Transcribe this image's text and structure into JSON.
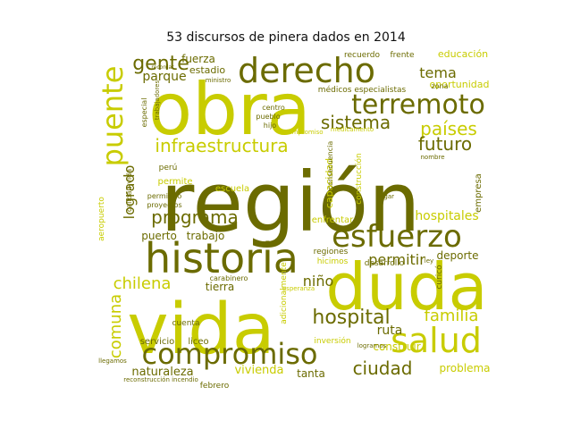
{
  "title": "53 discursos de pinera dados en 2014",
  "colors": {
    "dark": "#6b6b00",
    "light": "#c8cc00",
    "mid": "#9a9a00"
  },
  "words": [
    {
      "text": "región",
      "tone": "dark"
    },
    {
      "text": "obra",
      "tone": "light"
    },
    {
      "text": "vida",
      "tone": "light"
    },
    {
      "text": "duda",
      "tone": "light"
    },
    {
      "text": "historia",
      "tone": "dark"
    },
    {
      "text": "derecho",
      "tone": "dark"
    },
    {
      "text": "terremoto",
      "tone": "dark"
    },
    {
      "text": "esfuerzo",
      "tone": "dark"
    },
    {
      "text": "salud",
      "tone": "light"
    },
    {
      "text": "compromiso",
      "tone": "dark"
    },
    {
      "text": "puente",
      "tone": "light"
    },
    {
      "text": "infraestructura",
      "tone": "light"
    },
    {
      "text": "programa",
      "tone": "dark"
    },
    {
      "text": "hospital",
      "tone": "dark"
    },
    {
      "text": "sistema",
      "tone": "dark"
    },
    {
      "text": "países",
      "tone": "light"
    },
    {
      "text": "futuro",
      "tone": "dark"
    },
    {
      "text": "gente",
      "tone": "dark"
    },
    {
      "text": "ciudad",
      "tone": "dark"
    },
    {
      "text": "familia",
      "tone": "light"
    },
    {
      "text": "chilena",
      "tone": "light"
    },
    {
      "text": "comuna",
      "tone": "light"
    },
    {
      "text": "permitir",
      "tone": "dark"
    },
    {
      "text": "logrado",
      "tone": "dark"
    },
    {
      "text": "parque",
      "tone": "dark"
    },
    {
      "text": "niño",
      "tone": "dark"
    },
    {
      "text": "tema",
      "tone": "dark"
    },
    {
      "text": "hospitales",
      "tone": "light"
    },
    {
      "text": "trabajo",
      "tone": "dark"
    },
    {
      "text": "puerto",
      "tone": "dark"
    },
    {
      "text": "tierra",
      "tone": "dark"
    },
    {
      "text": "ruta",
      "tone": "dark"
    },
    {
      "text": "vivienda",
      "tone": "light"
    },
    {
      "text": "naturaleza",
      "tone": "dark"
    },
    {
      "text": "tanta",
      "tone": "dark"
    },
    {
      "text": "problema",
      "tone": "light"
    },
    {
      "text": "deporte",
      "tone": "dark"
    },
    {
      "text": "construir",
      "tone": "light"
    },
    {
      "text": "fuerza",
      "tone": "dark"
    },
    {
      "text": "estadio",
      "tone": "dark"
    },
    {
      "text": "educación",
      "tone": "light"
    },
    {
      "text": "oportunidad",
      "tone": "light"
    },
    {
      "text": "capacidad",
      "tone": "light"
    },
    {
      "text": "médicos especialistas",
      "tone": "dark"
    },
    {
      "text": "recuerdo",
      "tone": "dark"
    },
    {
      "text": "frente",
      "tone": "dark"
    },
    {
      "text": "liceo",
      "tone": "dark"
    },
    {
      "text": "servicio",
      "tone": "dark"
    },
    {
      "text": "regiones",
      "tone": "dark"
    },
    {
      "text": "desarrollo",
      "tone": "dark"
    },
    {
      "text": "empresa",
      "tone": "dark"
    },
    {
      "text": "cuenta",
      "tone": "dark"
    },
    {
      "text": "inversión",
      "tone": "light"
    },
    {
      "text": "enfrentar",
      "tone": "light"
    },
    {
      "text": "centro",
      "tone": "dark"
    },
    {
      "text": "pueblo",
      "tone": "dark"
    },
    {
      "text": "construcción",
      "tone": "light"
    },
    {
      "text": "carabinero",
      "tone": "dark"
    },
    {
      "text": "permite",
      "tone": "light"
    },
    {
      "text": "permitido",
      "tone": "dark"
    },
    {
      "text": "proyectos",
      "tone": "dark"
    },
    {
      "text": "escuela",
      "tone": "light"
    },
    {
      "text": "aeropuerto",
      "tone": "light"
    },
    {
      "text": "calidad vida",
      "tone": "dark"
    },
    {
      "text": "especial",
      "tone": "dark"
    },
    {
      "text": "hijo",
      "tone": "dark"
    },
    {
      "text": "zona",
      "tone": "dark"
    },
    {
      "text": "medicamento",
      "tone": "light"
    },
    {
      "text": "consecuencia",
      "tone": "dark"
    },
    {
      "text": "perú",
      "tone": "dark"
    },
    {
      "text": "febrero",
      "tone": "dark"
    },
    {
      "text": "hicimos",
      "tone": "light"
    },
    {
      "text": "lugar",
      "tone": "dark"
    },
    {
      "text": "nombre",
      "tone": "dark"
    },
    {
      "text": "adicionalmente",
      "tone": "light"
    },
    {
      "text": "curicó",
      "tone": "dark"
    },
    {
      "text": "reconstrucción incendio",
      "tone": "dark"
    },
    {
      "text": "llegamos",
      "tone": "dark"
    },
    {
      "text": "trabajadores",
      "tone": "dark"
    },
    {
      "text": "recordar",
      "tone": "dark"
    },
    {
      "text": "ministro",
      "tone": "dark"
    },
    {
      "text": "compromiso",
      "tone": "light"
    },
    {
      "text": "esperanza",
      "tone": "light"
    },
    {
      "text": "logramos",
      "tone": "dark"
    },
    {
      "text": "ley",
      "tone": "dark"
    }
  ]
}
